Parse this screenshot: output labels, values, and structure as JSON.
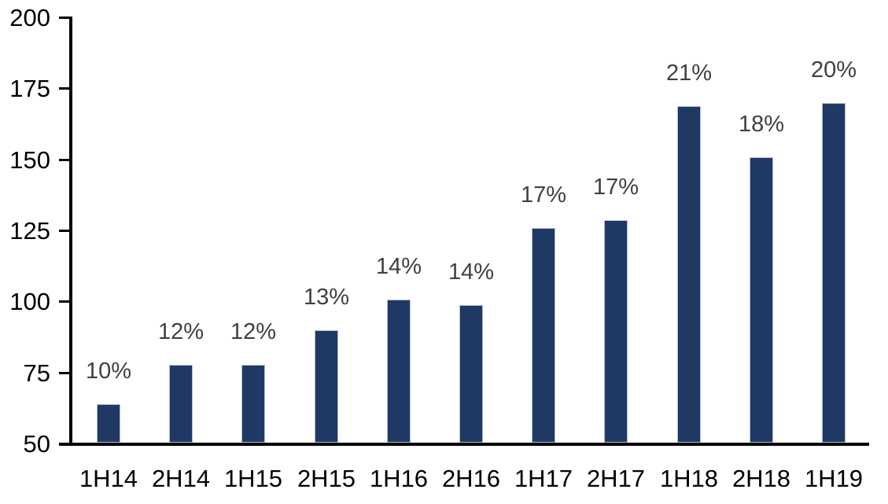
{
  "chart_data": {
    "type": "bar",
    "title": "",
    "xlabel": "",
    "ylabel": "",
    "categories": [
      "1H14",
      "2H14",
      "1H15",
      "2H15",
      "1H16",
      "2H16",
      "1H17",
      "2H17",
      "1H18",
      "2H18",
      "1H19"
    ],
    "values": [
      64,
      78,
      78,
      90,
      101,
      99,
      126,
      129,
      169,
      151,
      170
    ],
    "data_labels": [
      "10%",
      "12%",
      "12%",
      "13%",
      "14%",
      "14%",
      "17%",
      "17%",
      "21%",
      "18%",
      "20%"
    ],
    "ylim": [
      50,
      200
    ],
    "yticks": [
      50,
      75,
      100,
      125,
      150,
      175,
      200
    ],
    "grid": false,
    "legend": false,
    "colors": {
      "bar_fill": "#203864",
      "bar_border": "#b3bfd1",
      "data_label": "#404040",
      "axis_text": "#000000",
      "axis_line": "#000000"
    }
  }
}
